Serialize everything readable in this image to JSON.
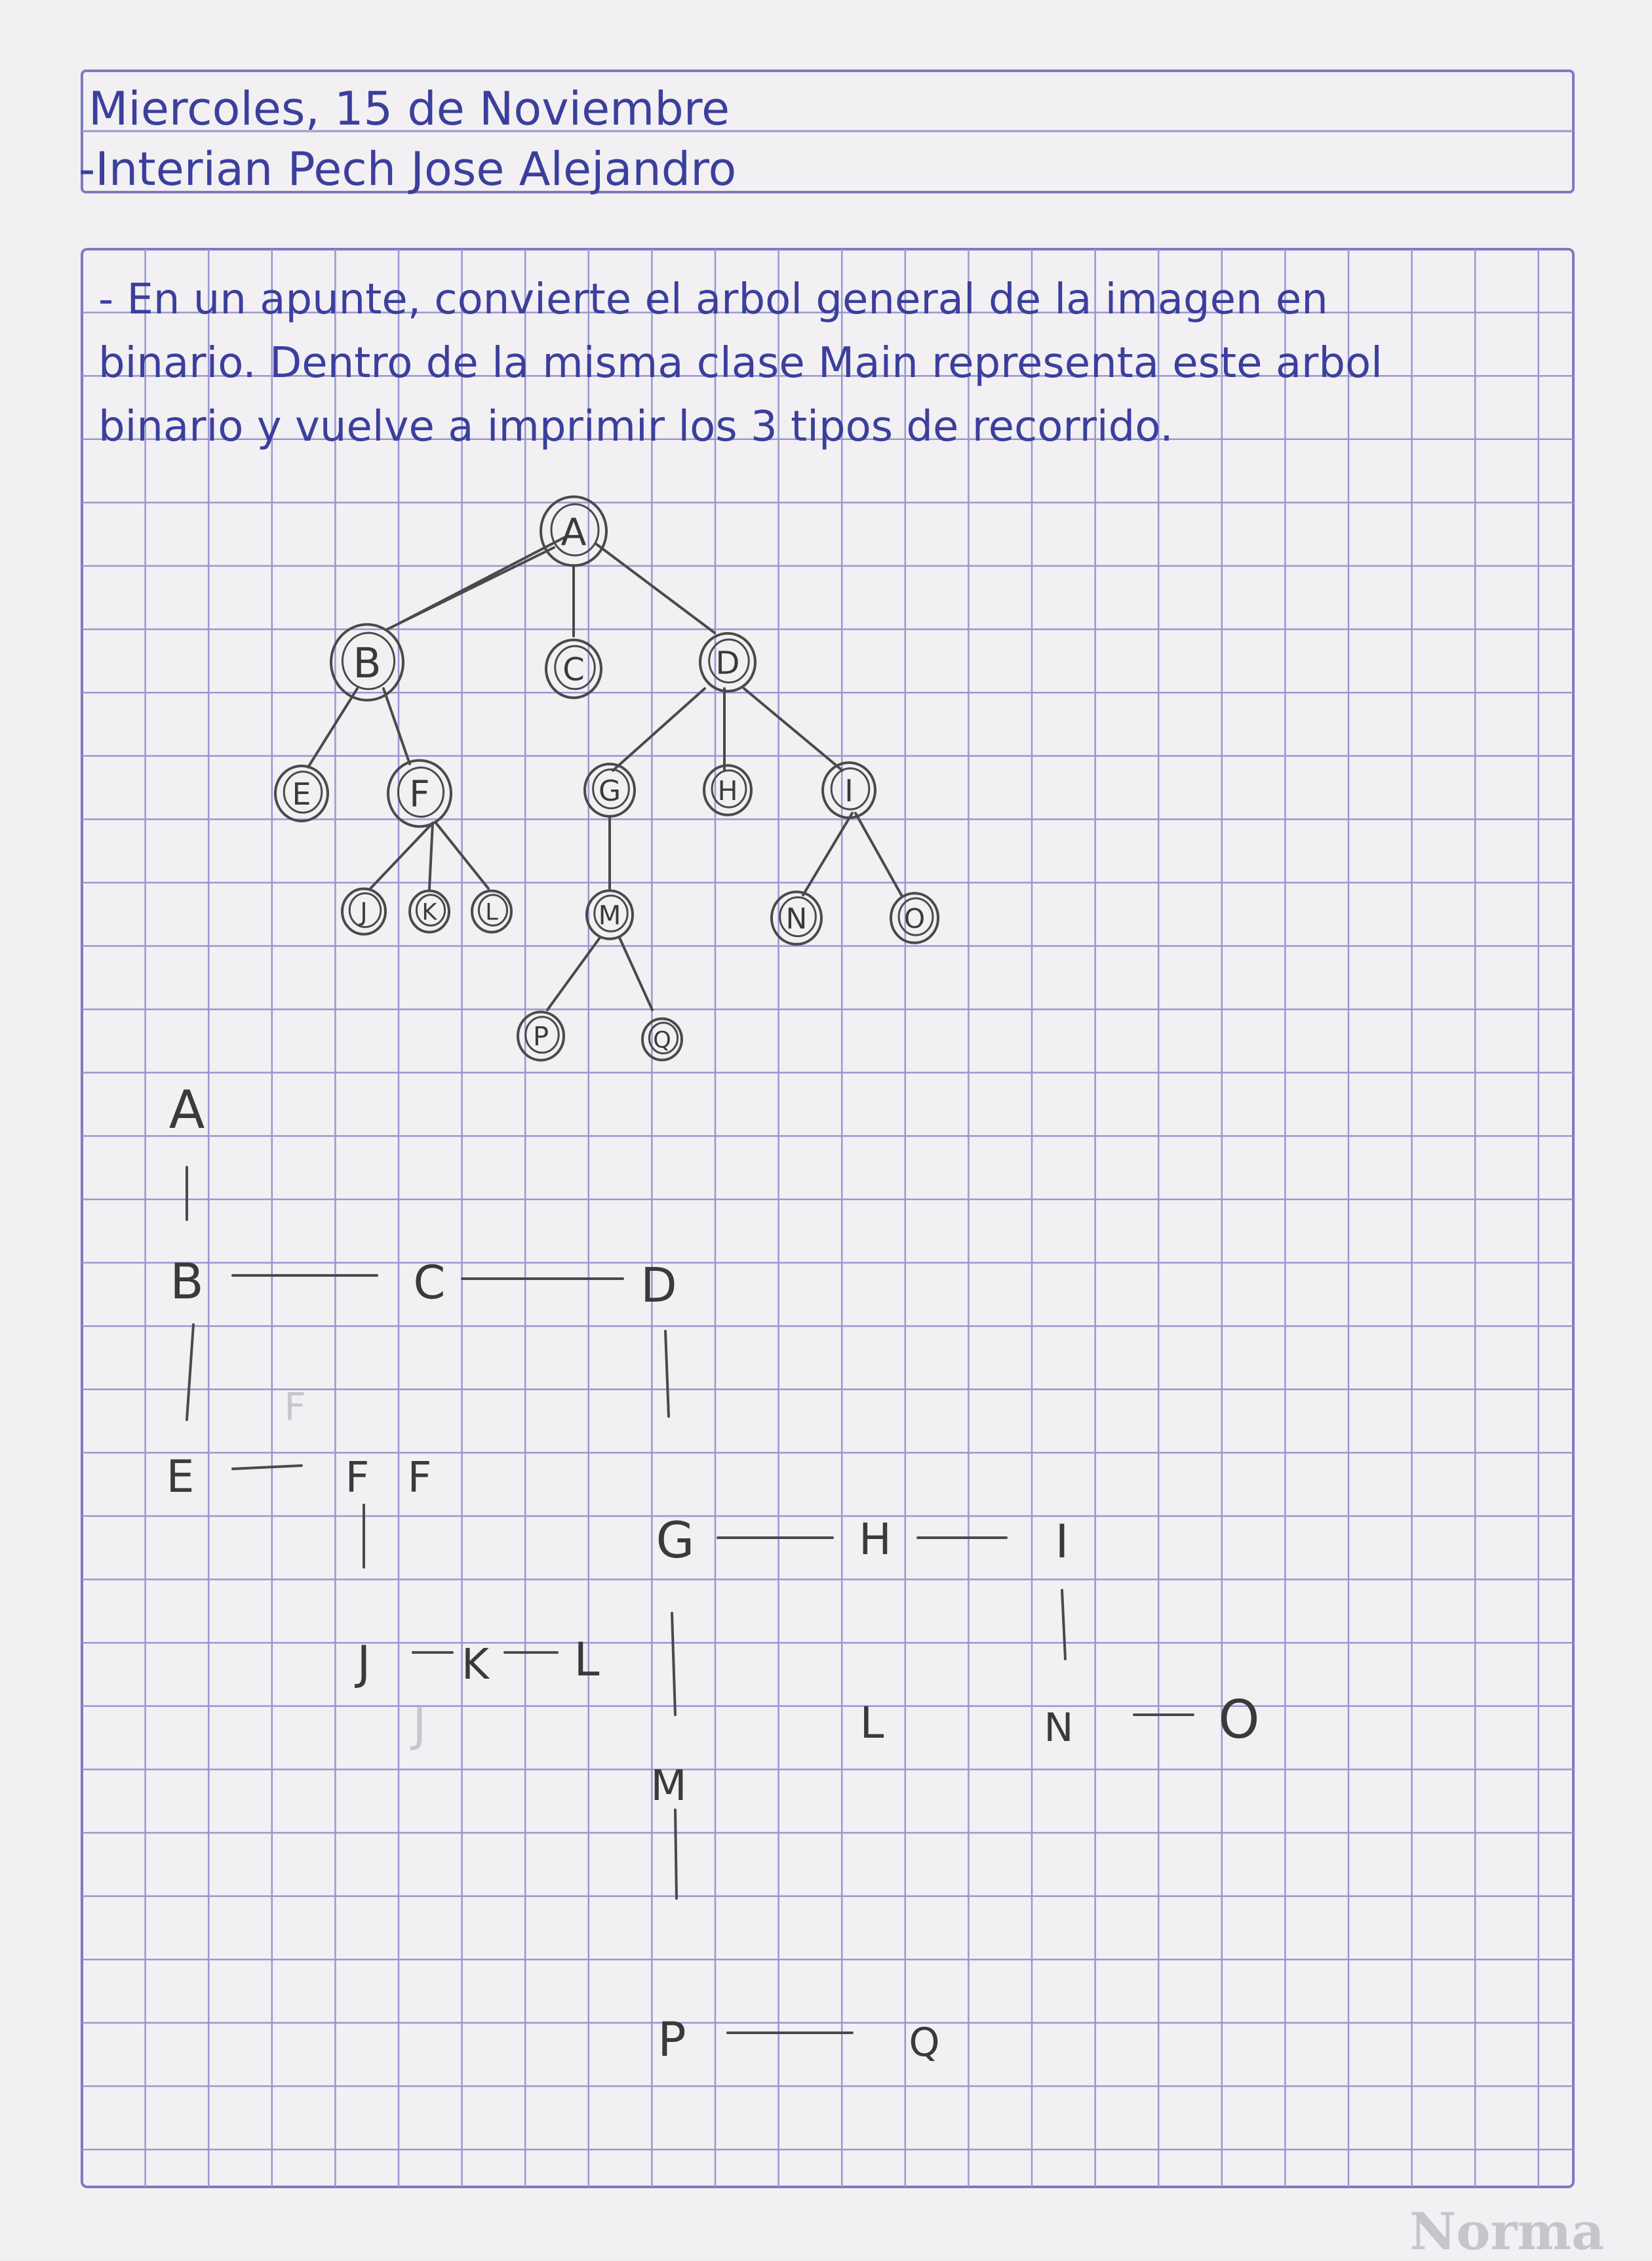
{
  "header": {
    "date": "Miercoles, 15 de Noviembre",
    "name": "-Interian Pech Jose Alejandro"
  },
  "prompt": {
    "line1": "- En un apunte, convierte el arbol general de la imagen en",
    "line2": "binario. Dentro de la misma clase Main representa este arbol",
    "line3": "binario y vuelve a imprimir los 3 tipos de recorrido."
  },
  "general_tree": {
    "nodes": [
      "A",
      "B",
      "C",
      "D",
      "E",
      "F",
      "G",
      "H",
      "I",
      "J",
      "K",
      "L",
      "M",
      "N",
      "O",
      "P",
      "Q"
    ]
  },
  "binary_tree": {
    "labels": [
      "A",
      "B",
      "C",
      "D",
      "E",
      "F",
      "F",
      "G",
      "H",
      "I",
      "J",
      "K",
      "L",
      "L",
      "M",
      "N",
      "O",
      "P",
      "Q",
      "F",
      "J"
    ]
  },
  "brand": "Norma",
  "colors": {
    "ink": "#3b3f9c",
    "pencil": "#4a4a4a",
    "grid": "#8c88c8",
    "paper": "#f2f0f3"
  }
}
